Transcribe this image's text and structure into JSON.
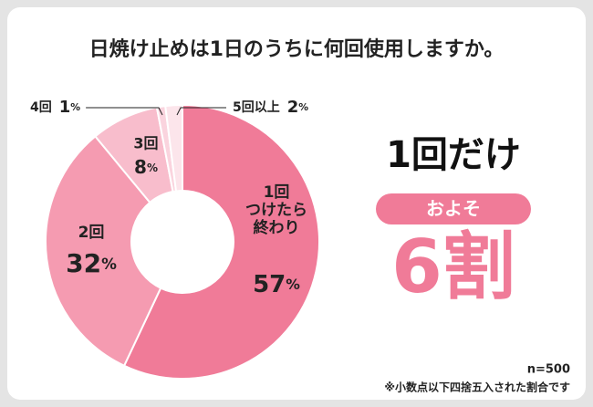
{
  "chart_data": {
    "type": "donut",
    "title": "日焼け止めは1日のうちに何回使用しますか。",
    "categories": [
      "1回\nつけたら\n終わり",
      "2回",
      "3回",
      "4回",
      "5回以上"
    ],
    "values": [
      57,
      32,
      8,
      1,
      2
    ],
    "value_labels": [
      "57%",
      "32%",
      "8%",
      "1%",
      "2%"
    ],
    "colors": [
      "#f07b98",
      "#f59bb1",
      "#f8bdcc",
      "#fad4de",
      "#fce5eb"
    ],
    "annotations": {
      "headline": "1回だけ",
      "badge": "およそ",
      "big": "6割"
    },
    "sample": "n=500",
    "note": "※小数点以下四捨五入された割合です"
  }
}
